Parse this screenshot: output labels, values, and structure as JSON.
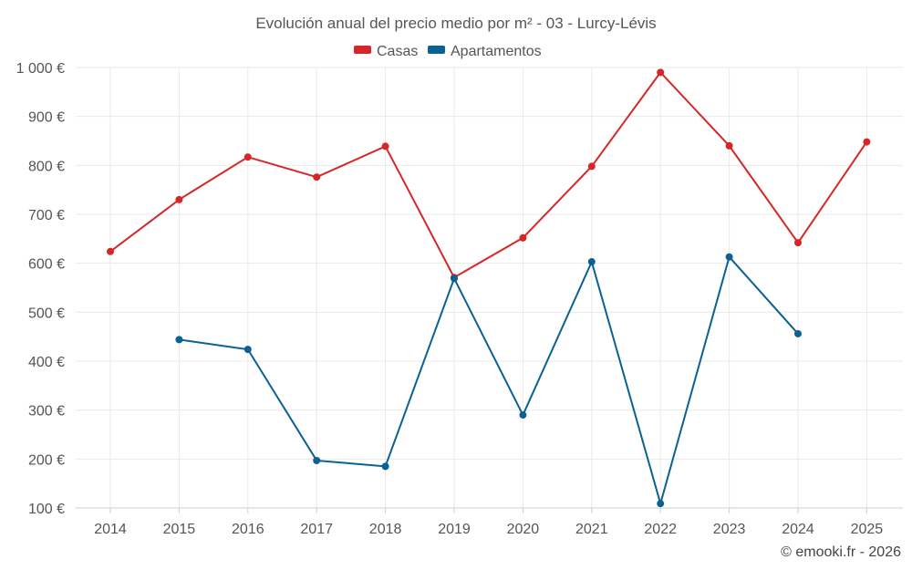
{
  "chart_data": {
    "type": "line",
    "title": "Evolución anual del precio medio por m² - 03 - Lurcy-Lévis",
    "xlabel": "",
    "ylabel": "",
    "categories": [
      "2014",
      "2015",
      "2016",
      "2017",
      "2018",
      "2019",
      "2020",
      "2021",
      "2022",
      "2023",
      "2024",
      "2025"
    ],
    "ylim": [
      100,
      1000
    ],
    "yticks": [
      100,
      200,
      300,
      400,
      500,
      600,
      700,
      800,
      900,
      1000
    ],
    "ytick_labels": [
      "100 €",
      "200 €",
      "300 €",
      "400 €",
      "500 €",
      "600 €",
      "700 €",
      "800 €",
      "900 €",
      "1 000 €"
    ],
    "grid": true,
    "legend_position": "top-center",
    "series": [
      {
        "name": "Casas",
        "color": "#d62728",
        "values": [
          624,
          730,
          817,
          776,
          839,
          571,
          652,
          798,
          990,
          840,
          642,
          848
        ]
      },
      {
        "name": "Apartamentos",
        "color": "#0b6194",
        "values": [
          null,
          444,
          424,
          197,
          185,
          569,
          290,
          603,
          109,
          613,
          456,
          null
        ]
      }
    ]
  },
  "credit": "© emooki.fr - 2026"
}
